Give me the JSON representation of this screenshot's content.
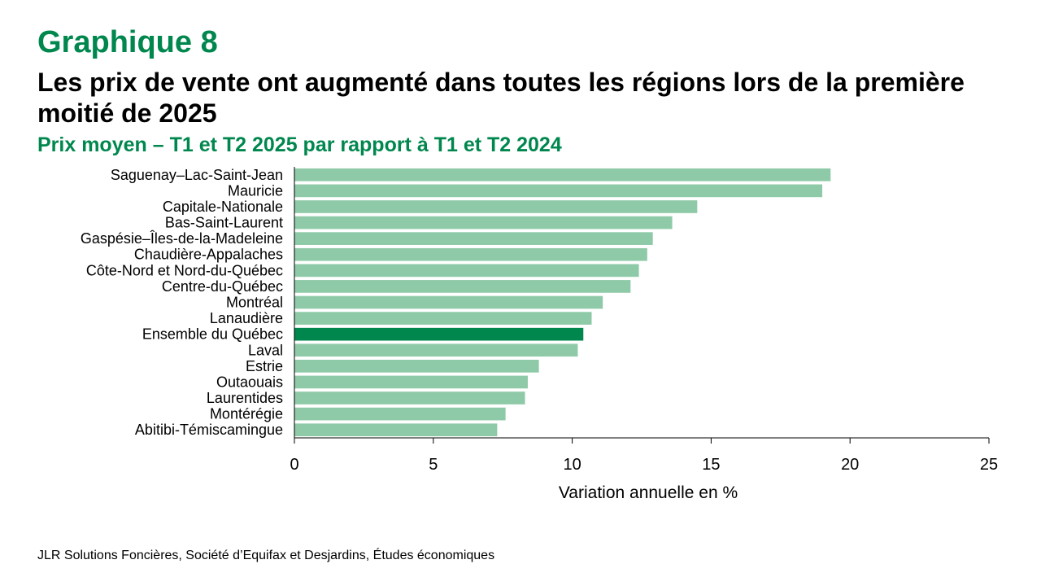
{
  "kicker": "Graphique 8",
  "title": "Les prix de vente ont augmenté dans toutes les régions lors de la première moitié de 2025",
  "subtitle": "Prix moyen – T1 et T2 2025 par rapport à T1 et T2 2024",
  "source": "JLR Solutions Foncières, Société d’Equifax et Desjardins, Études économiques",
  "colors": {
    "bar": "#8FCAA8",
    "highlight": "#00874E",
    "accent": "#00874E"
  },
  "chart_data": {
    "type": "bar",
    "orientation": "horizontal",
    "categories": [
      "Saguenay–Lac-Saint-Jean",
      "Mauricie",
      "Capitale-Nationale",
      "Bas-Saint-Laurent",
      "Gaspésie–Îles-de-la-Madeleine",
      "Chaudière-Appalaches",
      "Côte-Nord et Nord-du-Québec",
      "Centre-du-Québec",
      "Montréal",
      "Lanaudière",
      "Ensemble du Québec",
      "Laval",
      "Estrie",
      "Outaouais",
      "Laurentides",
      "Montérégie",
      "Abitibi-Témiscamingue"
    ],
    "values": [
      19.3,
      19.0,
      14.5,
      13.6,
      12.9,
      12.7,
      12.4,
      12.1,
      11.1,
      10.7,
      10.4,
      10.2,
      8.8,
      8.4,
      8.3,
      7.6,
      7.3
    ],
    "highlight_category": "Ensemble du Québec",
    "xlabel": "Variation annuelle en %",
    "xlim": [
      0,
      25
    ],
    "xticks": [
      0,
      5,
      10,
      15,
      20,
      25
    ],
    "grid": false
  }
}
